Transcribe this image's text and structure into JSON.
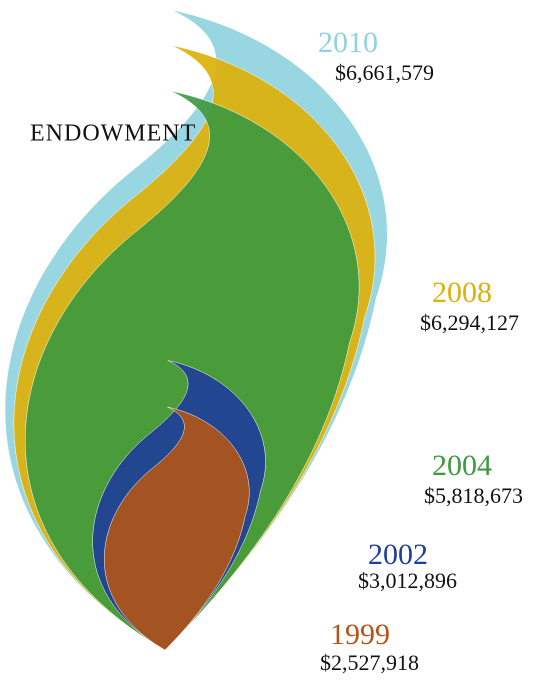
{
  "chart_data": {
    "type": "flame",
    "title": "ENDOWMENT",
    "categories": [
      "2010",
      "2008",
      "2004",
      "2002",
      "1999"
    ],
    "values": [
      6661579,
      6294127,
      5818673,
      3012896,
      2527918
    ],
    "value_labels": [
      "$6,661,579",
      "$6,294,127",
      "$5,818,673",
      "$3,012,896",
      "$2,527,918"
    ],
    "colors": [
      "#8fd3e0",
      "#dcb10a",
      "#3e9a3e",
      "#1f3f99",
      "#b0561a"
    ]
  }
}
